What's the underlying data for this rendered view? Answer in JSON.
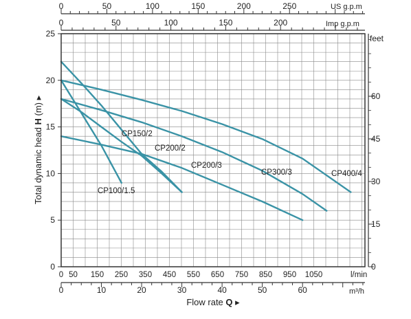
{
  "chart_data": {
    "type": "line",
    "ylabel_parts": [
      "Total dynamic head ",
      "H",
      " (m)",
      " ▸"
    ],
    "xlabel_parts": [
      "Flow rate ",
      "Q",
      " ▸"
    ],
    "ylim": [
      0,
      25
    ],
    "y_ticks": [
      "0",
      "5",
      "10",
      "15",
      "20",
      "25"
    ],
    "right_axis": {
      "unit": "feet",
      "ticks": [
        {
          "label": "0",
          "value": 0
        },
        {
          "label": "15",
          "value": 15
        },
        {
          "label": "30",
          "value": 30
        },
        {
          "label": "45",
          "value": 45
        },
        {
          "label": "60",
          "value": 60
        }
      ]
    },
    "x_lmin": {
      "unit": "l/min",
      "ticks": [
        {
          "label": "0",
          "value": 0
        },
        {
          "label": "50",
          "value": 50
        },
        {
          "label": "150",
          "value": 150
        },
        {
          "label": "250",
          "value": 250
        },
        {
          "label": "350",
          "value": 350
        },
        {
          "label": "450",
          "value": 450
        },
        {
          "label": "550",
          "value": 550
        },
        {
          "label": "650",
          "value": 650
        },
        {
          "label": "750",
          "value": 750
        },
        {
          "label": "850",
          "value": 850
        },
        {
          "label": "950",
          "value": 950
        },
        {
          "label": "1050",
          "value": 1050
        }
      ]
    },
    "x_m3h": {
      "unit": "m³/h",
      "ticks": [
        "0",
        "10",
        "20",
        "30",
        "40",
        "50",
        "60"
      ]
    },
    "top_us": {
      "unit": "US g.p.m",
      "ticks": [
        "0",
        "50",
        "100",
        "150",
        "200",
        "250"
      ]
    },
    "top_imp": {
      "unit": "Imp g.p.m",
      "ticks": [
        "0",
        "50",
        "100",
        "150",
        "200"
      ]
    },
    "grid": true,
    "series": [
      {
        "name": "CP100/1.5",
        "x": [
          0,
          5,
          10,
          15
        ],
        "y": [
          20,
          16.5,
          13,
          9
        ]
      },
      {
        "name": "CP150/2",
        "x": [
          0,
          5,
          10,
          15,
          20,
          25,
          30
        ],
        "y": [
          18,
          16.6,
          15,
          13.4,
          11.9,
          10,
          8
        ]
      },
      {
        "name": "CP200/2",
        "x": [
          0,
          5,
          10,
          15,
          20,
          25,
          30
        ],
        "y": [
          22,
          19.7,
          17.3,
          14.7,
          12.1,
          10.2,
          8
        ]
      },
      {
        "name": "CP200/3",
        "x": [
          0,
          10,
          20,
          30,
          40,
          50,
          60
        ],
        "y": [
          14,
          13.1,
          12.1,
          10.6,
          8.8,
          7,
          5
        ]
      },
      {
        "name": "CP300/3",
        "x": [
          0,
          10,
          20,
          30,
          40,
          50,
          60,
          66
        ],
        "y": [
          18,
          16.8,
          15.5,
          14,
          12.3,
          10.3,
          7.8,
          6
        ]
      },
      {
        "name": "CP400/4",
        "x": [
          0,
          10,
          20,
          30,
          40,
          50,
          60,
          72
        ],
        "y": [
          20,
          19,
          17.9,
          16.7,
          15.3,
          13.7,
          11.6,
          8
        ]
      }
    ],
    "colors": {
      "curve": "#3a93a6",
      "axis": "#333333",
      "grid": "#888888"
    }
  }
}
